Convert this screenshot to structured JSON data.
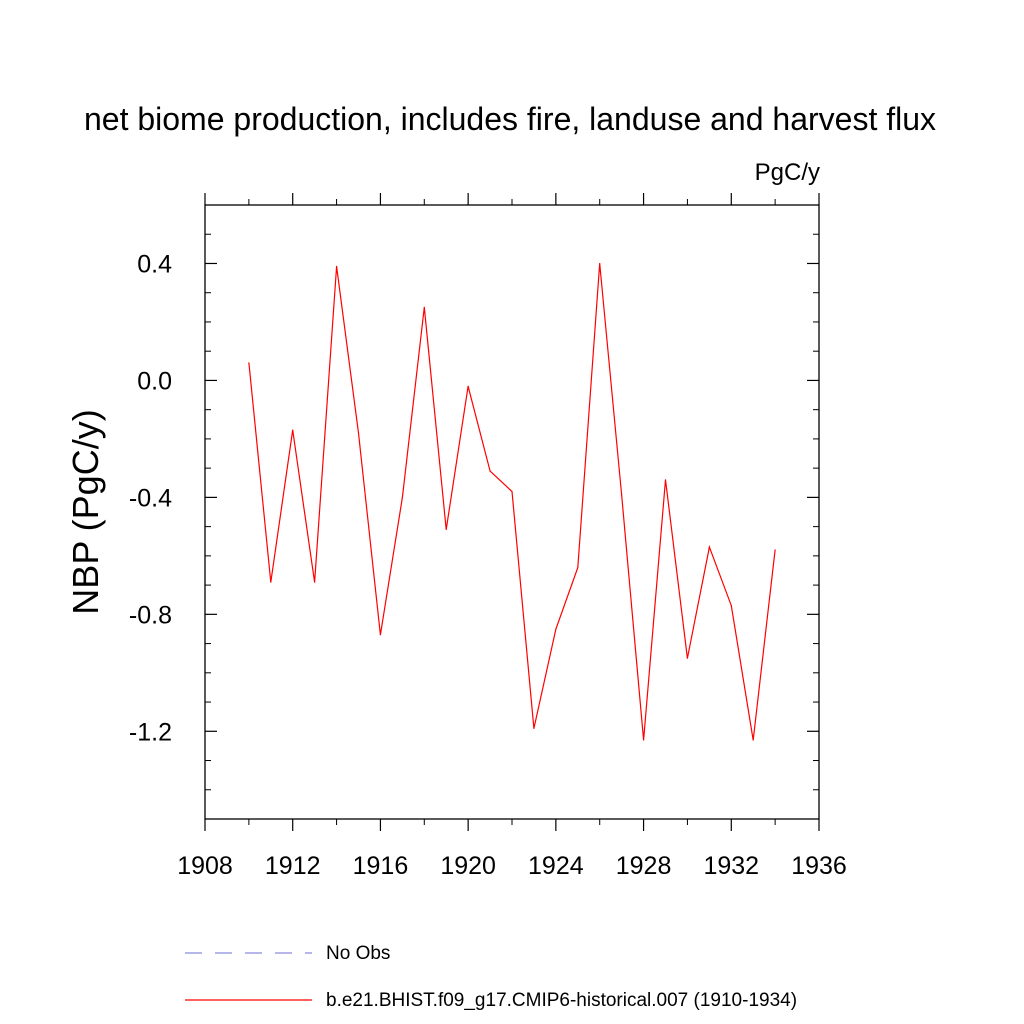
{
  "chart_data": {
    "type": "line",
    "title": "net biome production, includes fire, landuse and harvest flux",
    "units_label": "PgC/y",
    "xlabel": "",
    "ylabel": "NBP  (PgC/y)",
    "xlim": [
      1908,
      1936
    ],
    "ylim": [
      -1.5,
      0.6
    ],
    "x_ticks": [
      1908,
      1912,
      1916,
      1920,
      1924,
      1928,
      1932,
      1936
    ],
    "x_minor_step": 2,
    "y_ticks": [
      -1.2,
      -0.8,
      -0.4,
      0.0,
      0.4
    ],
    "y_tick_labels": [
      "-1.2",
      "-0.8",
      "-0.4",
      "0.0",
      "0.4"
    ],
    "y_minor_step": 0.1,
    "grid": false,
    "legend": {
      "placement": "bottom",
      "entries": [
        {
          "label": "No Obs",
          "style": "dashed",
          "color": "#8a8adf"
        },
        {
          "label": "b.e21.BHIST.f09_g17.CMIP6-historical.007 (1910-1934)",
          "style": "solid",
          "color": "#ff0000"
        }
      ]
    },
    "series": [
      {
        "name": "b.e21.BHIST.f09_g17.CMIP6-historical.007 (1910-1934)",
        "color": "#ff0000",
        "x": [
          1910,
          1911,
          1912,
          1913,
          1914,
          1915,
          1916,
          1917,
          1918,
          1919,
          1920,
          1921,
          1922,
          1923,
          1924,
          1925,
          1926,
          1927,
          1928,
          1929,
          1930,
          1931,
          1932,
          1933,
          1934
        ],
        "y": [
          0.06,
          -0.69,
          -0.17,
          -0.69,
          0.39,
          -0.18,
          -0.87,
          -0.4,
          0.25,
          -0.51,
          -0.02,
          -0.31,
          -0.38,
          -1.19,
          -0.85,
          -0.64,
          0.4,
          -0.39,
          -1.23,
          -0.34,
          -0.95,
          -0.57,
          -0.77,
          -1.23,
          -0.58
        ]
      }
    ]
  }
}
